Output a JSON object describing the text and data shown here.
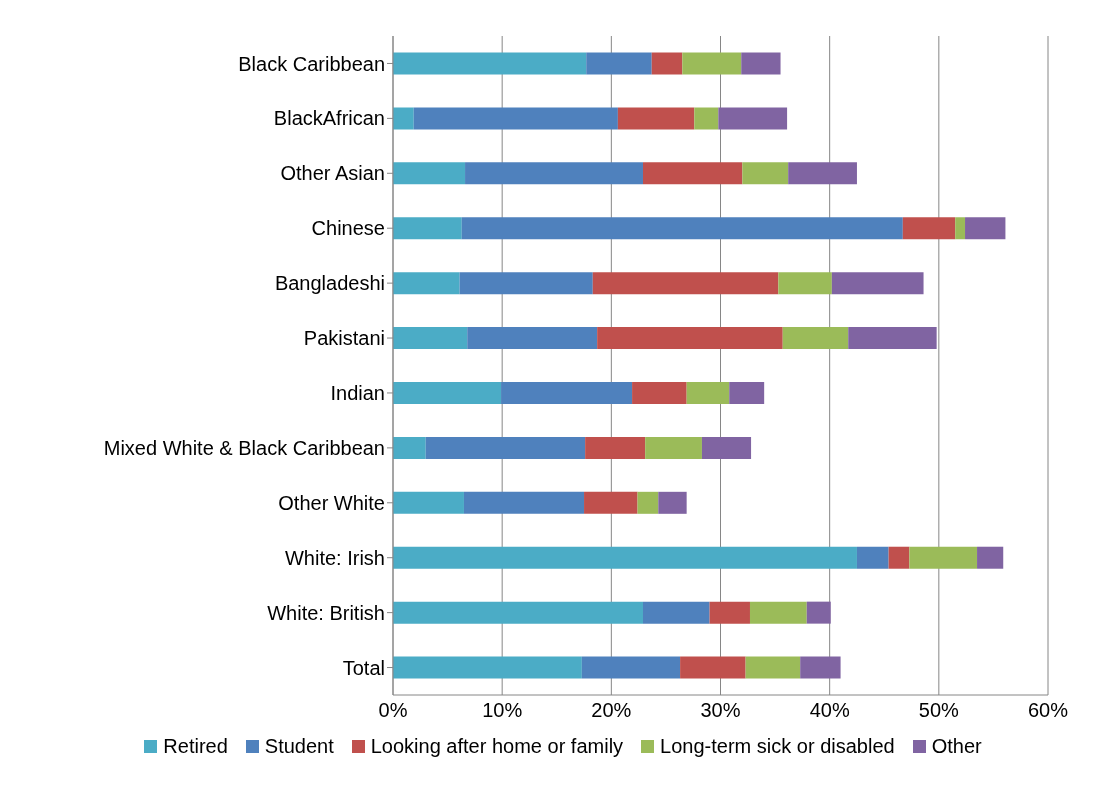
{
  "chart_data": {
    "type": "bar",
    "orientation": "horizontal",
    "stacked": true,
    "grid": "x",
    "legend": "bottom",
    "categories": [
      "Black Caribbean",
      "BlackAfrican",
      "Other Asian",
      "Chinese",
      "Bangladeshi",
      "Pakistani",
      "Indian",
      "Mixed White & Black Caribbean",
      "Other White",
      "White: Irish",
      "White: British",
      "Total"
    ],
    "series": [
      {
        "name": "Retired",
        "color": "#4bacc6",
        "values": [
          17.7,
          1.9,
          6.6,
          6.3,
          6.1,
          6.8,
          9.9,
          3.0,
          6.5,
          42.5,
          22.9,
          17.3
        ]
      },
      {
        "name": "Student",
        "color": "#4f81bd",
        "values": [
          6.0,
          18.7,
          16.3,
          40.4,
          12.2,
          11.9,
          12.0,
          14.6,
          11.0,
          2.9,
          6.1,
          9.0
        ]
      },
      {
        "name": "Looking after home or family",
        "color": "#c0504d",
        "values": [
          2.8,
          7.0,
          9.1,
          4.8,
          17.0,
          17.0,
          5.0,
          5.5,
          4.9,
          1.9,
          3.7,
          6.0
        ]
      },
      {
        "name": "Long-term sick or disabled",
        "color": "#9bbb59",
        "values": [
          5.4,
          2.2,
          4.2,
          0.9,
          4.9,
          6.0,
          3.9,
          5.2,
          1.9,
          6.2,
          5.2,
          5.0
        ]
      },
      {
        "name": "Other",
        "color": "#8064a2",
        "values": [
          3.6,
          6.3,
          6.3,
          3.7,
          8.4,
          8.1,
          3.2,
          4.5,
          2.6,
          2.4,
          2.2,
          3.7
        ]
      }
    ],
    "xlim": [
      0,
      60
    ],
    "xticks": [
      {
        "value": 0,
        "label": "0%"
      },
      {
        "value": 10,
        "label": "10%"
      },
      {
        "value": 20,
        "label": "20%"
      },
      {
        "value": 30,
        "label": "30%"
      },
      {
        "value": 40,
        "label": "40%"
      },
      {
        "value": 50,
        "label": "50%"
      },
      {
        "value": 60,
        "label": "60%"
      }
    ]
  }
}
